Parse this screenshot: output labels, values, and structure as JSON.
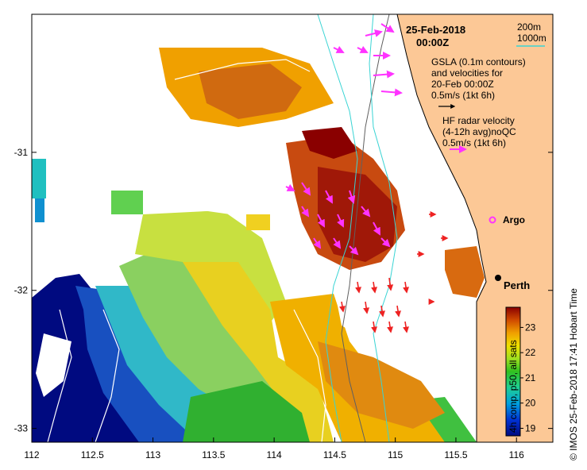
{
  "map": {
    "date": "25-Feb-2018",
    "time": "00:00Z",
    "legend_depth": {
      "label_200": "200m",
      "label_1000": "1000m",
      "color_200": "#606060",
      "color_1000": "#3ad4d4"
    },
    "gsla_note": {
      "line1": "GSLA (0.1m contours)",
      "line2": "and velocities for",
      "line3": "20-Feb 00:00Z",
      "line4": "0.5m/s (1kt 6h)"
    },
    "hf_note": {
      "line1": "HF radar velocity",
      "line2": "(4-12h avg)noQC",
      "line3": "0.5m/s (1kt 6h)"
    },
    "places": {
      "argo": "Argo",
      "perth": "Perth"
    },
    "colorbar": {
      "label": "4h comp, p50, all sats",
      "ticks": [
        "23",
        "22",
        "21",
        "20",
        "19"
      ],
      "min": 18.7,
      "max": 23.8
    },
    "axes": {
      "x_ticks": [
        "112",
        "112.5",
        "113",
        "113.5",
        "114",
        "114.5",
        "115",
        "115.5",
        "116"
      ],
      "y_ticks": [
        "-31",
        "-32",
        "-33"
      ],
      "xlim": [
        112,
        116.3
      ],
      "ylim": [
        -33.1,
        -30.0
      ]
    },
    "watermark": "© IMOS 25-Feb-2018 17:41 Hobart Time",
    "colors": {
      "land": "#fcc896",
      "hf_arrow": "#ff33ff",
      "gsla_arrow": "#000000",
      "red_arrow": "#ee2222",
      "argo": "#ff33ff"
    }
  }
}
